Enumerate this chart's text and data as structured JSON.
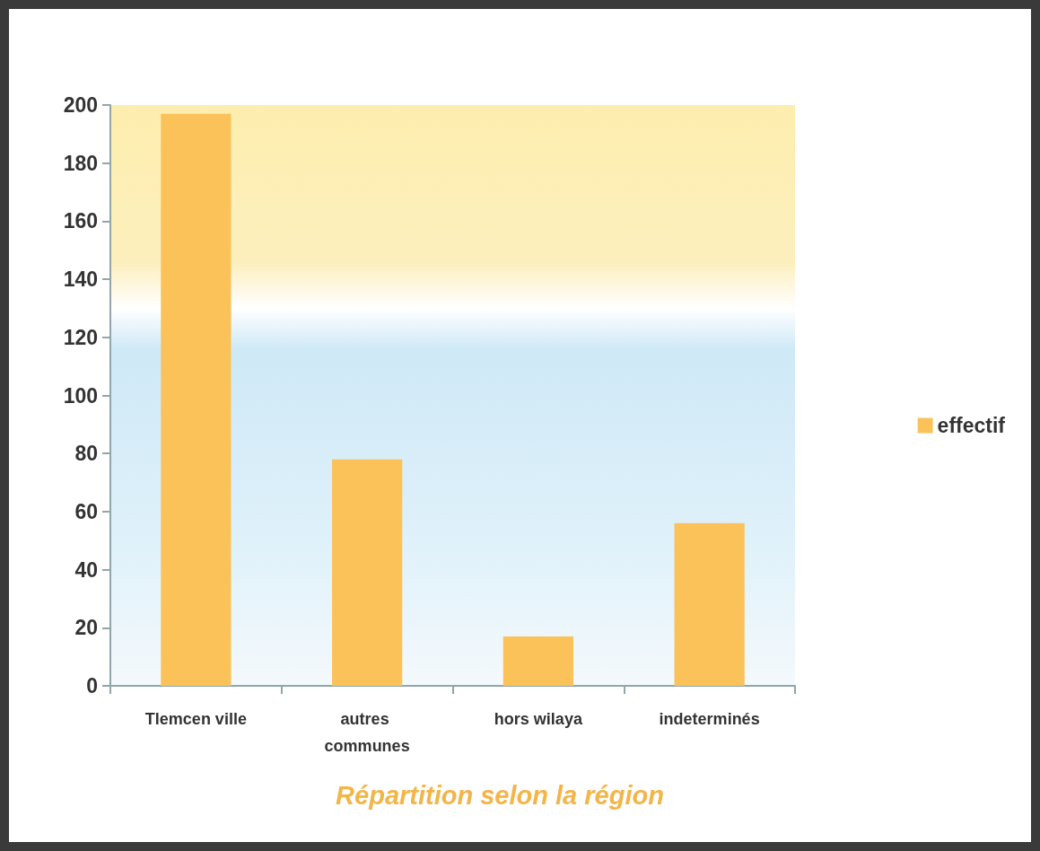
{
  "chart_data": {
    "type": "bar",
    "title": "Répartition selon la région",
    "categories": [
      "Tlemcen ville",
      "autres communes",
      "hors wilaya",
      "indeterminés"
    ],
    "series": [
      {
        "name": "effectif",
        "color": "#fbc25a",
        "values": [
          197,
          78,
          17,
          56
        ]
      }
    ],
    "ylim": [
      0,
      200
    ],
    "yticks": [
      0,
      20,
      40,
      60,
      80,
      100,
      120,
      140,
      160,
      180,
      200
    ],
    "grid": false,
    "legend": "right"
  }
}
